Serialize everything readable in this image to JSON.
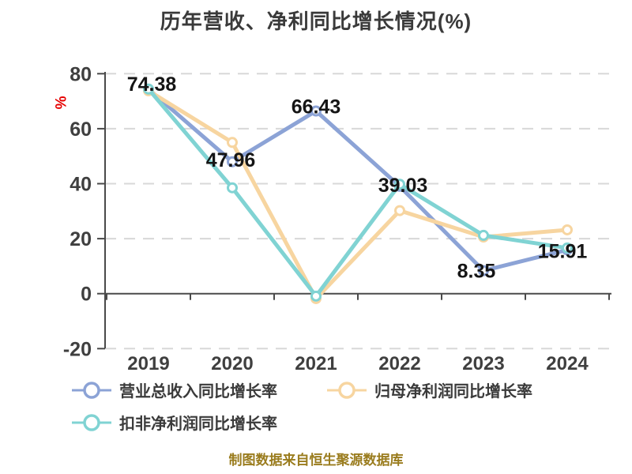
{
  "title": "历年营收、净利同比增长情况(%)",
  "footer": "制图数据来自恒生聚源数据库",
  "chart_data": {
    "type": "line",
    "title": "历年营收、净利同比增长情况(%)",
    "categories": [
      "2019",
      "2020",
      "2021",
      "2022",
      "2023",
      "2024"
    ],
    "series": [
      {
        "name": "营业总收入同比增长率",
        "color": "#8CA3D6",
        "values": [
          74.38,
          47.96,
          66.43,
          39.03,
          8.35,
          15.91
        ],
        "show_labels": true
      },
      {
        "name": "归母净利润同比增长率",
        "color": "#F7D5A0",
        "values": [
          73.8,
          55.0,
          -1.8,
          30.2,
          20.6,
          23.2
        ],
        "show_labels": false
      },
      {
        "name": "扣非净利润同比增长率",
        "color": "#80D3D3",
        "values": [
          74.4,
          38.5,
          -0.9,
          39.8,
          21.2,
          16.6
        ],
        "show_labels": false
      }
    ],
    "data_labels": [
      "74.38",
      "47.96",
      "66.43",
      "39.03",
      "8.35",
      "15.91"
    ],
    "y_axis": {
      "unit": "%",
      "unit_color": "#e60000",
      "min": -20,
      "max": 80,
      "tick_step": 20,
      "ticks": [
        80,
        60,
        40,
        20,
        0,
        -20
      ]
    },
    "x_axis": {
      "ticks_on_zero_line": true
    },
    "grid": "horizontal dashed",
    "legend_position": "bottom-left",
    "marker": "circle-white-fill"
  }
}
